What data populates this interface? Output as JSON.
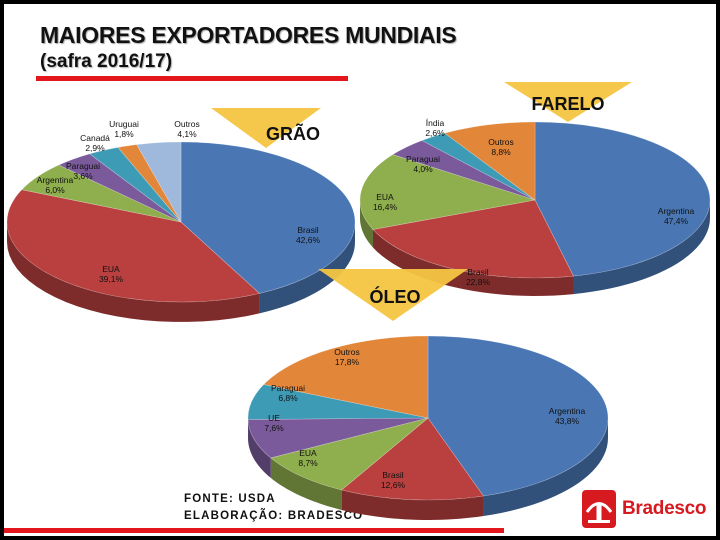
{
  "header": {
    "title": "MAIORES EXPORTADORES MUNDIAIS",
    "subtitle": "(safra 2016/17)"
  },
  "footer": {
    "source": "FONTE: USDA",
    "elaboration": "ELABORAÇÃO: BRADESCO"
  },
  "logo": {
    "name": "Bradesco",
    "icon": "bradesco-tree-icon",
    "color": "#d71920"
  },
  "colors": {
    "blue": "#4a77b4",
    "red": "#b9403f",
    "green": "#8fae4d",
    "purple": "#7a5a9a",
    "teal": "#3d9bb6",
    "orange": "#e2863a",
    "lightblue": "#9fb9dc",
    "callout": "#f4c542",
    "accent": "#e3161b"
  },
  "chart_data": [
    {
      "type": "pie",
      "title": "GRÃO",
      "slices": [
        {
          "label": "Brasil",
          "value": 42.6,
          "display": "42,6%",
          "color": "#4a77b4"
        },
        {
          "label": "EUA",
          "value": 39.1,
          "display": "39,1%",
          "color": "#b9403f"
        },
        {
          "label": "Argentina",
          "value": 6.0,
          "display": "6,0%",
          "color": "#8fae4d"
        },
        {
          "label": "Paraguai",
          "value": 3.6,
          "display": "3,6%",
          "color": "#7a5a9a"
        },
        {
          "label": "Canadá",
          "value": 2.9,
          "display": "2,9%",
          "color": "#3d9bb6"
        },
        {
          "label": "Uruguai",
          "value": 1.8,
          "display": "1,8%",
          "color": "#e2863a"
        },
        {
          "label": "Outros",
          "value": 4.1,
          "display": "4,1%",
          "color": "#9fb9dc"
        }
      ]
    },
    {
      "type": "pie",
      "title": "FARELO",
      "slices": [
        {
          "label": "Argentina",
          "value": 47.4,
          "display": "47,4%",
          "color": "#4a77b4"
        },
        {
          "label": "Brasil",
          "value": 22.8,
          "display": "22,8%",
          "color": "#b9403f"
        },
        {
          "label": "EUA",
          "value": 16.4,
          "display": "16,4%",
          "color": "#8fae4d"
        },
        {
          "label": "Paraguai",
          "value": 4.0,
          "display": "4,0%",
          "color": "#7a5a9a"
        },
        {
          "label": "Índia",
          "value": 2.6,
          "display": "2,6%",
          "color": "#3d9bb6"
        },
        {
          "label": "Outros",
          "value": 8.8,
          "display": "8,8%",
          "color": "#e2863a"
        }
      ]
    },
    {
      "type": "pie",
      "title": "ÓLEO",
      "slices": [
        {
          "label": "Argentina",
          "value": 43.8,
          "display": "43,8%",
          "color": "#4a77b4"
        },
        {
          "label": "Brasil",
          "value": 12.6,
          "display": "12,6%",
          "color": "#b9403f"
        },
        {
          "label": "EUA",
          "value": 8.7,
          "display": "8,7%",
          "color": "#8fae4d"
        },
        {
          "label": "UE",
          "value": 7.6,
          "display": "7,6%",
          "color": "#7a5a9a"
        },
        {
          "label": "Paraguai",
          "value": 6.8,
          "display": "6,8%",
          "color": "#3d9bb6"
        },
        {
          "label": "Outros",
          "value": 17.8,
          "display": "17,8%",
          "color": "#e2863a"
        }
      ]
    }
  ]
}
